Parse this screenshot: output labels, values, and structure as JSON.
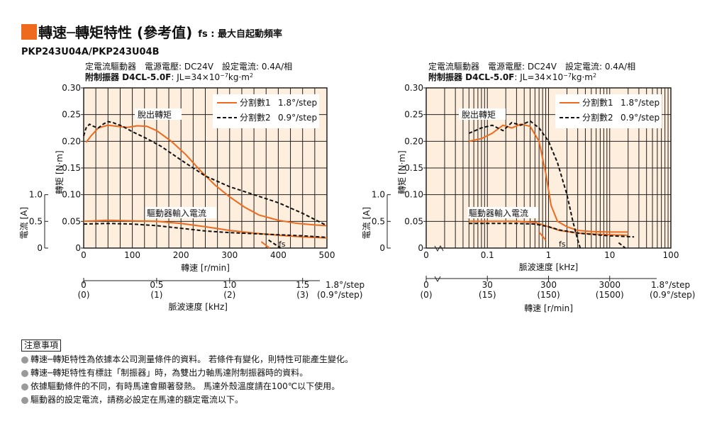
{
  "header": {
    "title": "轉速─轉矩特性 (參考值)",
    "fs_note": "fs : 最大自起動頻率",
    "model": "PKP243U04A/PKP243U04B"
  },
  "conditions": {
    "line1": "定電流驅動器　電源電壓: DC24V　設定電流: 0.4A/相",
    "line2_bold": "附制振器 D4CL-5.0F",
    "line2_rest": ": JL=34×10",
    "line2_exp": "−7",
    "line2_unit": "kg·m",
    "line2_unit_exp": "2"
  },
  "labels": {
    "torque_axis": "轉矩 [N·m]",
    "current_axis": "電流 [A]",
    "speed_axis": "轉速 [r/min]",
    "pulse_axis": "脈波速度 [kHz]",
    "pullout": "脫出轉矩",
    "driver_current": "驅動器輸入電流",
    "fs": "fs",
    "step_full": "1.8°/step",
    "step_half": "(0.9°/step)"
  },
  "legend": [
    {
      "name": "分割數1",
      "step": "1.8°/step",
      "color": "#ee6a1e",
      "dash": false
    },
    {
      "name": "分割數2",
      "step": "0.9°/step",
      "color": "#111111",
      "dash": true
    }
  ],
  "chart_data": [
    {
      "type": "line",
      "x_axis": "轉速 [r/min]",
      "xlim": [
        0,
        500
      ],
      "x_ticks": [
        "0",
        "100",
        "200",
        "300",
        "400",
        "500"
      ],
      "ylabel": "轉矩 [N·m]",
      "ylim": [
        0,
        0.3
      ],
      "y_ticks": [
        "0",
        "0.05",
        "0.10",
        "0.15",
        "0.20",
        "0.25",
        "0.30"
      ],
      "current_axis": {
        "ylabel": "電流 [A]",
        "ticks": [
          "0",
          "0.5",
          "1.0"
        ],
        "ylim": [
          0,
          1.0
        ]
      },
      "pulse_axis": {
        "label": "脈波速度 [kHz]",
        "ticks": [
          {
            "rpm": 0,
            "top": "0",
            "bottom": "(0)"
          },
          {
            "rpm": 150,
            "top": "0.5",
            "bottom": "(1)"
          },
          {
            "rpm": 300,
            "top": "1.0",
            "bottom": "(2)"
          },
          {
            "rpm": 450,
            "top": "1.5",
            "bottom": "(3)"
          }
        ]
      },
      "series": [
        {
          "name": "分割數1",
          "kind": "torque",
          "x": [
            5,
            15,
            30,
            50,
            70,
            90,
            110,
            130,
            150,
            180,
            210,
            240,
            270,
            300,
            330,
            360,
            400,
            440,
            480,
            500
          ],
          "y": [
            0.198,
            0.21,
            0.225,
            0.23,
            0.228,
            0.226,
            0.229,
            0.228,
            0.22,
            0.2,
            0.175,
            0.145,
            0.118,
            0.096,
            0.077,
            0.062,
            0.052,
            0.046,
            0.043,
            0.042
          ]
        },
        {
          "name": "分割數2",
          "kind": "torque",
          "x": [
            0,
            5,
            12,
            20,
            30,
            40,
            50,
            60,
            80,
            100,
            130,
            160,
            200,
            250,
            300,
            350,
            400,
            450,
            500
          ],
          "y": [
            0.21,
            0.225,
            0.232,
            0.228,
            0.225,
            0.232,
            0.237,
            0.235,
            0.228,
            0.218,
            0.205,
            0.19,
            0.165,
            0.135,
            0.115,
            0.1,
            0.085,
            0.065,
            0.042
          ]
        },
        {
          "name": "分割數1",
          "kind": "current",
          "x": [
            0,
            50,
            100,
            150,
            200,
            250,
            300,
            350,
            400,
            450,
            500
          ],
          "y": [
            0.05,
            0.052,
            0.051,
            0.05,
            0.046,
            0.04,
            0.033,
            0.028,
            0.024,
            0.021,
            0.019
          ]
        },
        {
          "name": "分割數2",
          "kind": "current",
          "x": [
            0,
            50,
            100,
            150,
            200,
            250,
            300,
            350,
            400,
            450,
            500
          ],
          "y": [
            0.045,
            0.046,
            0.045,
            0.042,
            0.037,
            0.032,
            0.029,
            0.027,
            0.025,
            0.023,
            0.02
          ]
        },
        {
          "name": "fs 分割數1",
          "kind": "fs",
          "x": [
            365,
            382
          ],
          "y": [
            0.012,
            0.0
          ]
        },
        {
          "name": "fs 分割數2",
          "kind": "fs",
          "x": [
            380,
            405
          ],
          "y": [
            0.015,
            0.0
          ]
        }
      ]
    },
    {
      "type": "line",
      "x_axis": "脈波速度 [kHz]",
      "x_scale": "log",
      "xlim": [
        0.01,
        100
      ],
      "x_ticks": [
        "0",
        "0.1",
        "1",
        "10",
        "100"
      ],
      "ylabel": "轉矩 [N·m]",
      "ylim": [
        0,
        0.3
      ],
      "y_ticks": [
        "0",
        "0.05",
        "0.10",
        "0.15",
        "0.20",
        "0.25",
        "0.30"
      ],
      "current_axis": {
        "ylabel": "電流 [A]",
        "ticks": [
          "0",
          "0.5",
          "1.0"
        ],
        "ylim": [
          0,
          1.0
        ]
      },
      "speed_axis": {
        "label": "轉速 [r/min]",
        "ticks": [
          {
            "khz": 0.1,
            "top": "30",
            "bottom": "(15)"
          },
          {
            "khz": 1,
            "top": "300",
            "bottom": "(150)"
          },
          {
            "khz": 10,
            "top": "3000",
            "bottom": "(1500)"
          }
        ]
      },
      "series": [
        {
          "name": "分割數1",
          "kind": "torque",
          "x": [
            0.05,
            0.08,
            0.12,
            0.18,
            0.25,
            0.35,
            0.5,
            0.7,
            0.9,
            1.1,
            1.4,
            2,
            3,
            5,
            10,
            20
          ],
          "y": [
            0.2,
            0.205,
            0.215,
            0.23,
            0.225,
            0.232,
            0.228,
            0.2,
            0.14,
            0.08,
            0.05,
            0.04,
            0.033,
            0.031,
            0.03,
            0.03
          ]
        },
        {
          "name": "分割數2",
          "kind": "torque",
          "x": [
            0.05,
            0.08,
            0.12,
            0.18,
            0.25,
            0.35,
            0.5,
            0.7,
            1,
            1.4,
            2,
            2.5,
            3,
            3.3
          ],
          "y": [
            0.215,
            0.225,
            0.23,
            0.22,
            0.235,
            0.23,
            0.238,
            0.225,
            0.2,
            0.16,
            0.1,
            0.05,
            0.015,
            0.0
          ]
        },
        {
          "name": "分割數1",
          "kind": "current",
          "x": [
            0.05,
            0.1,
            0.3,
            0.6,
            1,
            1.5,
            3,
            6,
            10,
            20
          ],
          "y": [
            0.05,
            0.05,
            0.05,
            0.048,
            0.04,
            0.033,
            0.028,
            0.026,
            0.025,
            0.024
          ]
        },
        {
          "name": "分割數2",
          "kind": "current",
          "x": [
            0.05,
            0.1,
            0.3,
            0.6,
            1,
            1.5,
            3,
            6,
            10,
            25
          ],
          "y": [
            0.046,
            0.046,
            0.046,
            0.045,
            0.04,
            0.034,
            0.028,
            0.025,
            0.023,
            0.021
          ]
        },
        {
          "name": "fs 分割數1",
          "kind": "fs",
          "x": [
            0.7,
            0.9
          ],
          "y": [
            0.03,
            0.015
          ]
        },
        {
          "name": "fs 分割數2",
          "kind": "fs",
          "x": [
            14,
            18
          ],
          "y": [
            0.01,
            0.0
          ]
        }
      ]
    }
  ],
  "notes": {
    "title": "注意事項",
    "items": [
      "轉速─轉矩特性為依據本公司測量條件的資料。 若條件有變化，則特性可能產生變化。",
      "轉速─轉矩特性有標註「制振器」時，為雙出力軸馬達附制振器時的資料。",
      "依據驅動條件的不同，有時馬達會顯著發熱。 馬達外殼溫度請在100℃以下使用。",
      "驅動器的設定電流，請務必設定在馬達的額定電流以下。"
    ]
  },
  "colors": {
    "accent": "#ee6a1e",
    "plot_bg": "#fdeedd",
    "grid": "#222222"
  }
}
